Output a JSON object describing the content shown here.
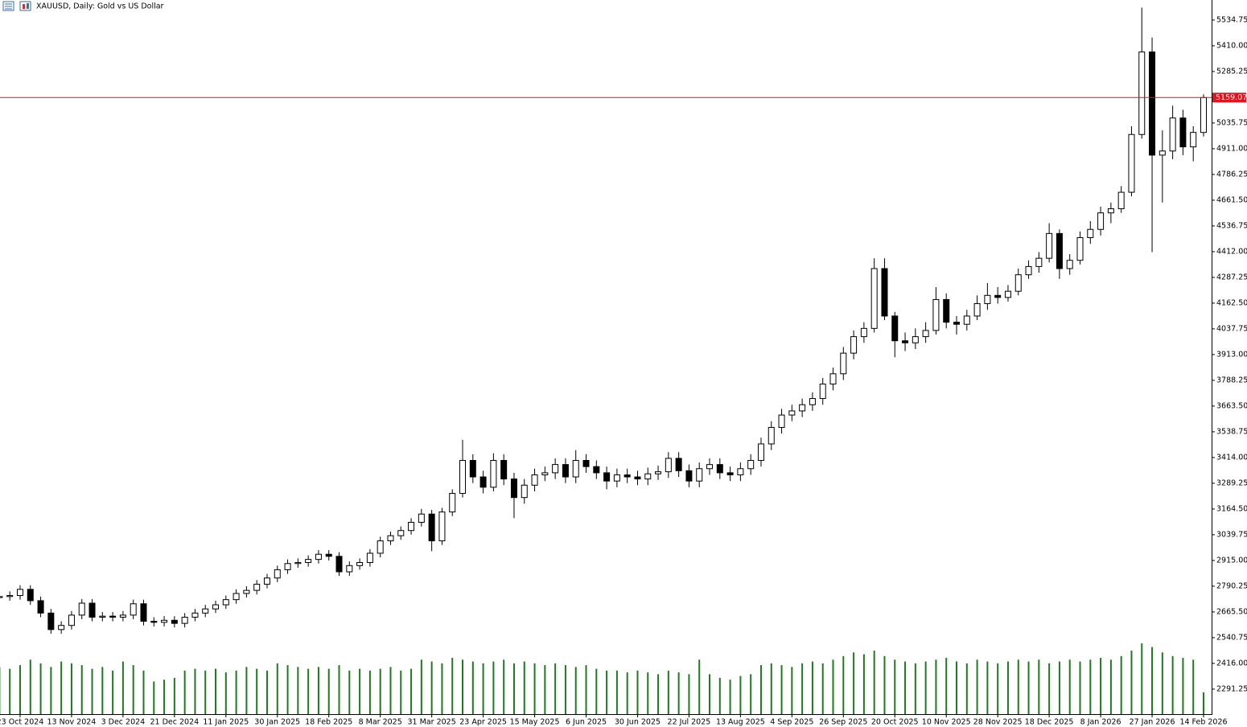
{
  "chart_data": {
    "type": "candlestick",
    "title": "XAUUSD, Daily:  Gold vs US Dollar",
    "categories": [
      null,
      null,
      "23 Oct 2024",
      null,
      null,
      null,
      null,
      "13 Nov 2024",
      null,
      null,
      null,
      null,
      "3 Dec 2024",
      null,
      null,
      null,
      null,
      "21 Dec 2024",
      null,
      null,
      null,
      null,
      "11 Jan 2025",
      null,
      null,
      null,
      null,
      "30 Jan 2025",
      null,
      null,
      null,
      null,
      "18 Feb 2025",
      null,
      null,
      null,
      null,
      "8 Mar 2025",
      null,
      null,
      null,
      null,
      "31 Mar 2025",
      null,
      null,
      null,
      null,
      "23 Apr 2025",
      null,
      null,
      null,
      null,
      "15 May 2025",
      null,
      null,
      null,
      null,
      "6 Jun 2025",
      null,
      null,
      null,
      null,
      "30 Jun 2025",
      null,
      null,
      null,
      null,
      "22 Jul 2025",
      null,
      null,
      null,
      null,
      "13 Aug 2025",
      null,
      null,
      null,
      null,
      "4 Sep 2025",
      null,
      null,
      null,
      null,
      "26 Sep 2025",
      null,
      null,
      null,
      null,
      "20 Oct 2025",
      null,
      null,
      null,
      null,
      "10 Nov 2025",
      null,
      null,
      null,
      null,
      "28 Nov 2025",
      null,
      null,
      null,
      null,
      "18 Dec 2025",
      null,
      null,
      null,
      null,
      "8 Jan 2026",
      null,
      null,
      null,
      null,
      "27 Jan 2026",
      null,
      null,
      null,
      null,
      "14 Feb 2026"
    ],
    "ohlc": [
      [
        2735,
        2760,
        2715,
        2740
      ],
      [
        2740,
        2765,
        2720,
        2745
      ],
      [
        2745,
        2795,
        2725,
        2775
      ],
      [
        2775,
        2795,
        2700,
        2720
      ],
      [
        2720,
        2740,
        2640,
        2660
      ],
      [
        2660,
        2680,
        2560,
        2580
      ],
      [
        2580,
        2620,
        2560,
        2600
      ],
      [
        2600,
        2670,
        2580,
        2650
      ],
      [
        2650,
        2728,
        2630,
        2708
      ],
      [
        2708,
        2728,
        2620,
        2640
      ],
      [
        2640,
        2665,
        2620,
        2645
      ],
      [
        2645,
        2665,
        2620,
        2640
      ],
      [
        2640,
        2670,
        2620,
        2650
      ],
      [
        2650,
        2725,
        2630,
        2705
      ],
      [
        2705,
        2725,
        2600,
        2620
      ],
      [
        2620,
        2640,
        2595,
        2615
      ],
      [
        2615,
        2645,
        2595,
        2625
      ],
      [
        2625,
        2645,
        2590,
        2610
      ],
      [
        2610,
        2660,
        2590,
        2640
      ],
      [
        2640,
        2680,
        2620,
        2660
      ],
      [
        2660,
        2700,
        2640,
        2680
      ],
      [
        2680,
        2720,
        2660,
        2700
      ],
      [
        2700,
        2745,
        2680,
        2725
      ],
      [
        2725,
        2775,
        2705,
        2755
      ],
      [
        2755,
        2790,
        2735,
        2770
      ],
      [
        2770,
        2820,
        2750,
        2800
      ],
      [
        2800,
        2850,
        2780,
        2830
      ],
      [
        2830,
        2890,
        2810,
        2870
      ],
      [
        2870,
        2920,
        2850,
        2900
      ],
      [
        2900,
        2925,
        2880,
        2905
      ],
      [
        2905,
        2940,
        2885,
        2920
      ],
      [
        2920,
        2965,
        2900,
        2945
      ],
      [
        2945,
        2965,
        2915,
        2935
      ],
      [
        2935,
        2955,
        2840,
        2860
      ],
      [
        2860,
        2910,
        2840,
        2890
      ],
      [
        2890,
        2925,
        2870,
        2905
      ],
      [
        2905,
        2970,
        2885,
        2950
      ],
      [
        2950,
        3030,
        2930,
        3010
      ],
      [
        3010,
        3055,
        2990,
        3035
      ],
      [
        3035,
        3080,
        3015,
        3060
      ],
      [
        3060,
        3120,
        3040,
        3100
      ],
      [
        3100,
        3165,
        3080,
        3140
      ],
      [
        3140,
        3160,
        2960,
        3010
      ],
      [
        3010,
        3170,
        2990,
        3150
      ],
      [
        3150,
        3260,
        3130,
        3240
      ],
      [
        3240,
        3500,
        3220,
        3400
      ],
      [
        3400,
        3430,
        3290,
        3320
      ],
      [
        3320,
        3350,
        3240,
        3270
      ],
      [
        3270,
        3435,
        3250,
        3400
      ],
      [
        3400,
        3430,
        3280,
        3310
      ],
      [
        3310,
        3340,
        3120,
        3220
      ],
      [
        3220,
        3310,
        3190,
        3280
      ],
      [
        3280,
        3360,
        3250,
        3330
      ],
      [
        3330,
        3370,
        3300,
        3340
      ],
      [
        3340,
        3410,
        3310,
        3380
      ],
      [
        3380,
        3410,
        3290,
        3320
      ],
      [
        3320,
        3450,
        3290,
        3400
      ],
      [
        3400,
        3430,
        3340,
        3370
      ],
      [
        3370,
        3400,
        3310,
        3340
      ],
      [
        3340,
        3370,
        3260,
        3300
      ],
      [
        3300,
        3360,
        3270,
        3330
      ],
      [
        3330,
        3360,
        3290,
        3320
      ],
      [
        3320,
        3350,
        3280,
        3310
      ],
      [
        3310,
        3365,
        3280,
        3335
      ],
      [
        3335,
        3375,
        3305,
        3345
      ],
      [
        3345,
        3440,
        3315,
        3410
      ],
      [
        3410,
        3440,
        3320,
        3350
      ],
      [
        3350,
        3380,
        3270,
        3300
      ],
      [
        3300,
        3390,
        3270,
        3360
      ],
      [
        3360,
        3410,
        3330,
        3380
      ],
      [
        3380,
        3410,
        3310,
        3340
      ],
      [
        3340,
        3370,
        3300,
        3330
      ],
      [
        3330,
        3390,
        3300,
        3360
      ],
      [
        3360,
        3430,
        3330,
        3400
      ],
      [
        3400,
        3510,
        3370,
        3480
      ],
      [
        3480,
        3590,
        3450,
        3560
      ],
      [
        3560,
        3650,
        3530,
        3620
      ],
      [
        3620,
        3670,
        3590,
        3640
      ],
      [
        3640,
        3700,
        3610,
        3670
      ],
      [
        3670,
        3730,
        3640,
        3700
      ],
      [
        3700,
        3800,
        3670,
        3770
      ],
      [
        3770,
        3850,
        3740,
        3820
      ],
      [
        3820,
        3950,
        3790,
        3920
      ],
      [
        3920,
        4030,
        3890,
        4000
      ],
      [
        4000,
        4070,
        3970,
        4040
      ],
      [
        4040,
        4380,
        4020,
        4330
      ],
      [
        4330,
        4380,
        4080,
        4100
      ],
      [
        4100,
        4120,
        3900,
        3980
      ],
      [
        3980,
        4020,
        3930,
        3970
      ],
      [
        3970,
        4040,
        3940,
        4000
      ],
      [
        4000,
        4070,
        3970,
        4030
      ],
      [
        4030,
        4240,
        4010,
        4180
      ],
      [
        4180,
        4210,
        4040,
        4070
      ],
      [
        4070,
        4100,
        4010,
        4060
      ],
      [
        4060,
        4130,
        4030,
        4100
      ],
      [
        4100,
        4200,
        4080,
        4160
      ],
      [
        4160,
        4260,
        4130,
        4200
      ],
      [
        4200,
        4240,
        4160,
        4190
      ],
      [
        4190,
        4250,
        4170,
        4220
      ],
      [
        4220,
        4330,
        4200,
        4300
      ],
      [
        4300,
        4370,
        4280,
        4340
      ],
      [
        4340,
        4410,
        4310,
        4380
      ],
      [
        4380,
        4550,
        4360,
        4500
      ],
      [
        4500,
        4520,
        4280,
        4330
      ],
      [
        4330,
        4400,
        4300,
        4370
      ],
      [
        4370,
        4510,
        4350,
        4480
      ],
      [
        4480,
        4560,
        4450,
        4520
      ],
      [
        4520,
        4630,
        4490,
        4600
      ],
      [
        4600,
        4650,
        4550,
        4620
      ],
      [
        4620,
        4730,
        4600,
        4700
      ],
      [
        4700,
        5020,
        4680,
        4980
      ],
      [
        4980,
        5595,
        4960,
        5380
      ],
      [
        5380,
        5450,
        4410,
        4880
      ],
      [
        4880,
        5000,
        4650,
        4900
      ],
      [
        4900,
        5120,
        4860,
        5060
      ],
      [
        5060,
        5100,
        4880,
        4920
      ],
      [
        4920,
        5020,
        4850,
        4990
      ],
      [
        4990,
        5175,
        4970,
        5159.07
      ]
    ],
    "volume": [
      130000,
      125000,
      135000,
      150000,
      140000,
      130000,
      145000,
      140000,
      135000,
      125000,
      130000,
      120000,
      145000,
      135000,
      120000,
      90000,
      95000,
      100000,
      120000,
      125000,
      120000,
      125000,
      115000,
      120000,
      130000,
      125000,
      120000,
      140000,
      135000,
      130000,
      125000,
      130000,
      125000,
      135000,
      120000,
      125000,
      120000,
      125000,
      130000,
      120000,
      125000,
      150000,
      145000,
      140000,
      155000,
      150000,
      145000,
      140000,
      145000,
      150000,
      140000,
      145000,
      140000,
      135000,
      140000,
      135000,
      130000,
      135000,
      125000,
      120000,
      120000,
      115000,
      120000,
      115000,
      110000,
      120000,
      115000,
      110000,
      150000,
      110000,
      100000,
      95000,
      105000,
      110000,
      135000,
      140000,
      135000,
      130000,
      140000,
      145000,
      140000,
      150000,
      160000,
      170000,
      165000,
      175000,
      160000,
      150000,
      145000,
      140000,
      145000,
      150000,
      155000,
      145000,
      140000,
      150000,
      145000,
      140000,
      145000,
      150000,
      145000,
      150000,
      140000,
      145000,
      150000,
      145000,
      150000,
      155000,
      150000,
      160000,
      175000,
      195000,
      185000,
      170000,
      160000,
      155000,
      150000,
      60000
    ],
    "volume_color": "#1f7a1f",
    "up_color": "#ffffff",
    "down_color": "#000000",
    "current_price": 5159.07,
    "current_price_color": "#e0141e",
    "ylim": [
      2170,
      5632
    ],
    "yticks": [
      5534.75,
      {
        "value": 5410,
        "label": "5410.00"
      },
      5285.25,
      5035.75,
      {
        "value": 4911,
        "label": "4911.00"
      },
      4786.25,
      {
        "value": 4661.5,
        "label": "4661.50"
      },
      4536.75,
      {
        "value": 4412,
        "label": "4412.00"
      },
      4287.25,
      {
        "value": 4162.5,
        "label": "4162.50"
      },
      4037.75,
      {
        "value": 3913,
        "label": "3913.00"
      },
      3788.25,
      {
        "value": 3663.5,
        "label": "3663.50"
      },
      3538.75,
      {
        "value": 3414,
        "label": "3414.00"
      },
      3289.25,
      {
        "value": 3164.5,
        "label": "3164.50"
      },
      3039.75,
      {
        "value": 2915,
        "label": "2915.00"
      },
      2790.25,
      {
        "value": 2665.5,
        "label": "2665.50"
      },
      2540.75,
      {
        "value": 2416,
        "label": "2416.00"
      },
      2291.25
    ]
  }
}
